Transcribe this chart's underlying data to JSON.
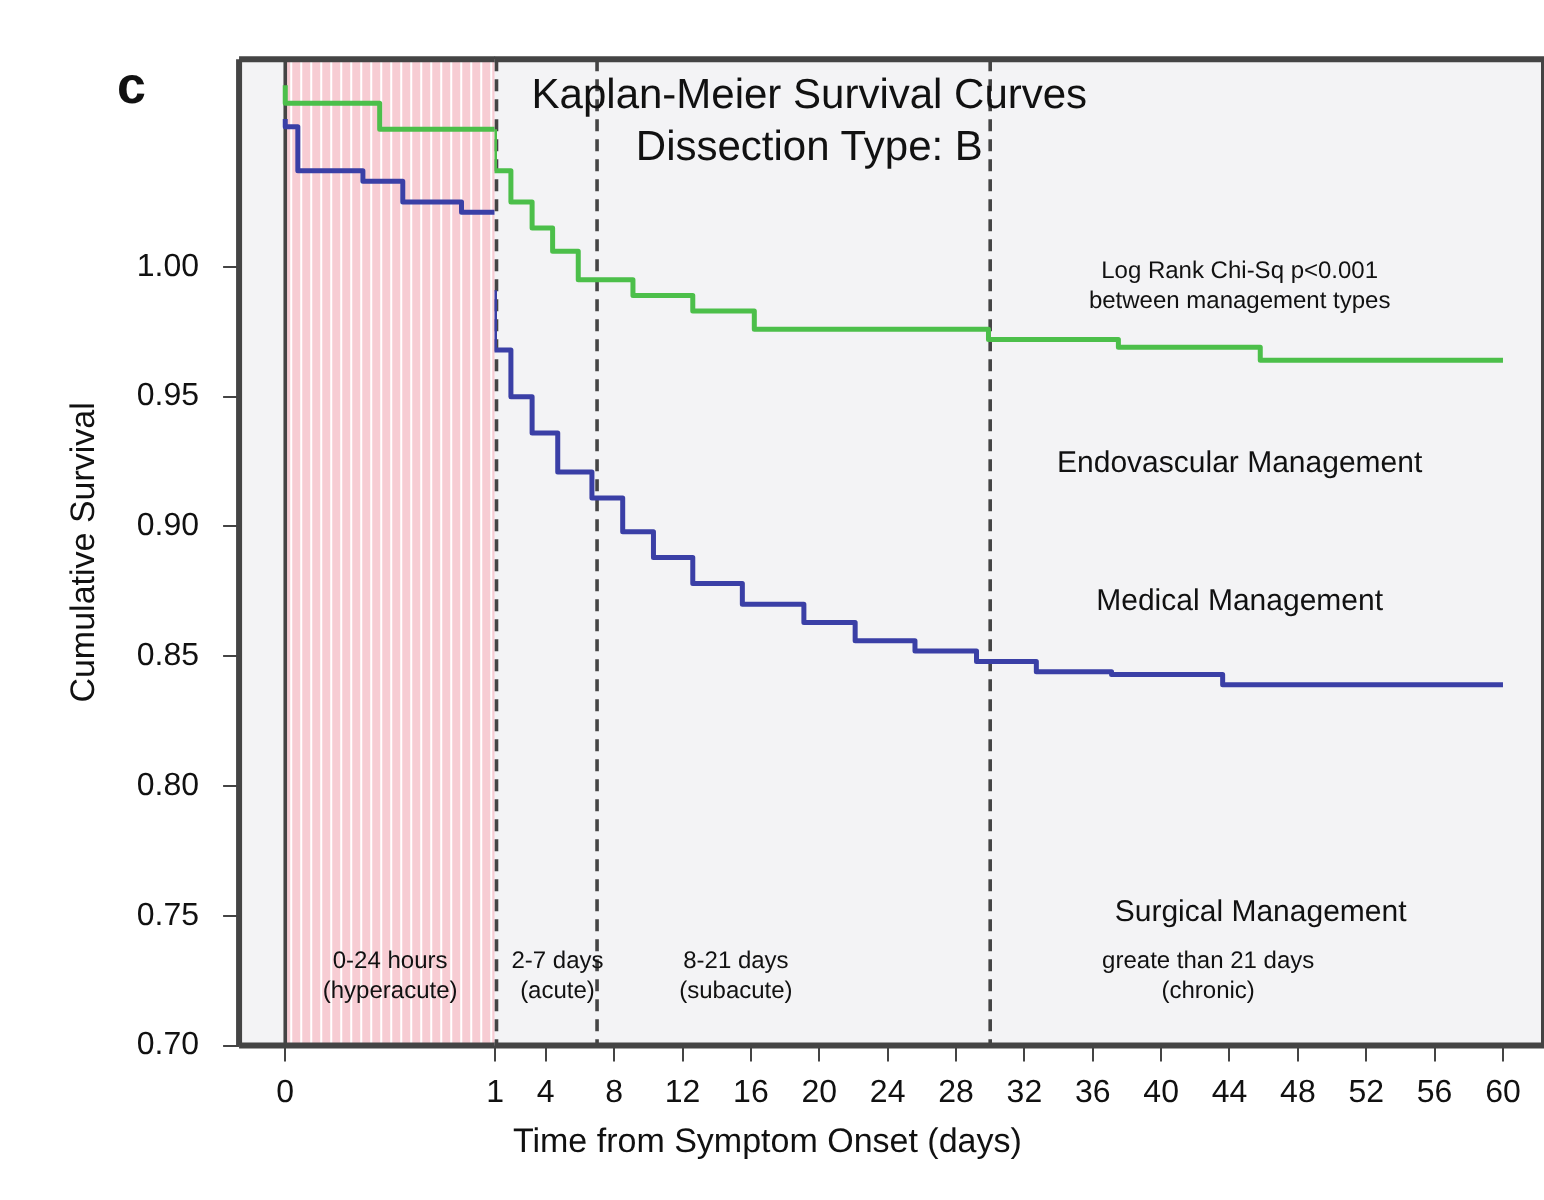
{
  "chart_data": [
    {
      "type": "step",
      "ylabel": "Cumulative Survival",
      "series": [
        {
          "color": "#4cbf4a",
          "x": [
            0,
            0.45,
            0.94,
            1
          ],
          "values": [
            1.07,
            1.063,
            1.053,
            1.053
          ]
        },
        {
          "color": "#3a3fa6",
          "x": [
            0,
            0.06,
            0.37,
            0.56,
            0.84,
            0.95,
            1
          ],
          "values": [
            1.057,
            1.054,
            1.037,
            1.033,
            1.025,
            1.021,
            1.021
          ]
        }
      ],
      "xlim": [
        -0.22,
        1
      ],
      "xticks": [
        0,
        1
      ],
      "ylim": [
        0.7,
        1.08
      ],
      "yticks": [
        {
          "value": 0.7,
          "label": "0.70"
        },
        {
          "value": 0.75,
          "label": "0.75"
        },
        {
          "value": 0.8,
          "label": "0.80"
        },
        {
          "value": 0.85,
          "label": "0.85"
        },
        {
          "value": 0.9,
          "label": "0.90"
        },
        {
          "value": 0.95,
          "label": "0.95"
        },
        {
          "value": 1.0,
          "label": "1.00"
        }
      ],
      "grid": false,
      "legend": false,
      "line_style": "solid",
      "bands": [
        {
          "axis": "x",
          "from": 0,
          "to": 1,
          "color": "#f7ccd3"
        }
      ],
      "ref_lines": [
        {
          "axis": "x",
          "value": 0,
          "color": "#444444",
          "line_style": "solid"
        }
      ],
      "annotations": [
        "c",
        "0-24 hours\n(hyperacute)"
      ]
    },
    {
      "type": "step",
      "title": "Kaplan-Meier Survival Curves",
      "subtitle": "Dissection Type: B",
      "xlabel": "Time from Symptom Onset (days)",
      "series": [
        {
          "color": "#4cbf4a",
          "x": [
            1,
            1.96,
            3.2,
            4.4,
            5.9,
            9.1,
            12.6,
            16.2,
            29.9,
            37.5,
            45.8,
            57.8,
            60
          ],
          "values": [
            1.053,
            1.037,
            1.025,
            1.015,
            1.006,
            0.995,
            0.989,
            0.983,
            0.976,
            0.972,
            0.969,
            0.964,
            0.964
          ]
        },
        {
          "color": "#3a3fa6",
          "x": [
            1,
            1.96,
            3.2,
            4.7,
            6.7,
            8.5,
            10.3,
            12.6,
            15.5,
            19.1,
            22.1,
            25.6,
            29.2,
            32.7,
            37.1,
            43.6,
            51.9,
            60
          ],
          "values": [
            0.991,
            0.968,
            0.95,
            0.936,
            0.921,
            0.911,
            0.898,
            0.888,
            0.878,
            0.87,
            0.863,
            0.856,
            0.852,
            0.848,
            0.844,
            0.843,
            0.839,
            0.839
          ]
        }
      ],
      "xlim": [
        1,
        62.4
      ],
      "xticks": [
        4,
        8,
        12,
        16,
        20,
        24,
        28,
        32,
        36,
        40,
        44,
        48,
        52,
        56,
        60
      ],
      "ylim": [
        0.7,
        1.08
      ],
      "tick_labels": "x",
      "grid": false,
      "legend": false,
      "line_style": "solid",
      "ref_lines": [
        {
          "axis": "x",
          "value": 1,
          "color": "#444444",
          "line_style": "dashed"
        },
        {
          "axis": "x",
          "value": 7,
          "color": "#444444",
          "line_style": "dashed"
        },
        {
          "axis": "x",
          "value": 30,
          "color": "#444444",
          "line_style": "dashed"
        }
      ],
      "annotations": [
        "Log Rank Chi-Sq p<0.001\nbetween management types",
        "Endovascular Management",
        "Medical Management",
        "Surgical Management",
        "2-7 days\n(acute)",
        "8-21 days\n(subacute)",
        "greate than 21 days\n(chronic)"
      ]
    }
  ]
}
